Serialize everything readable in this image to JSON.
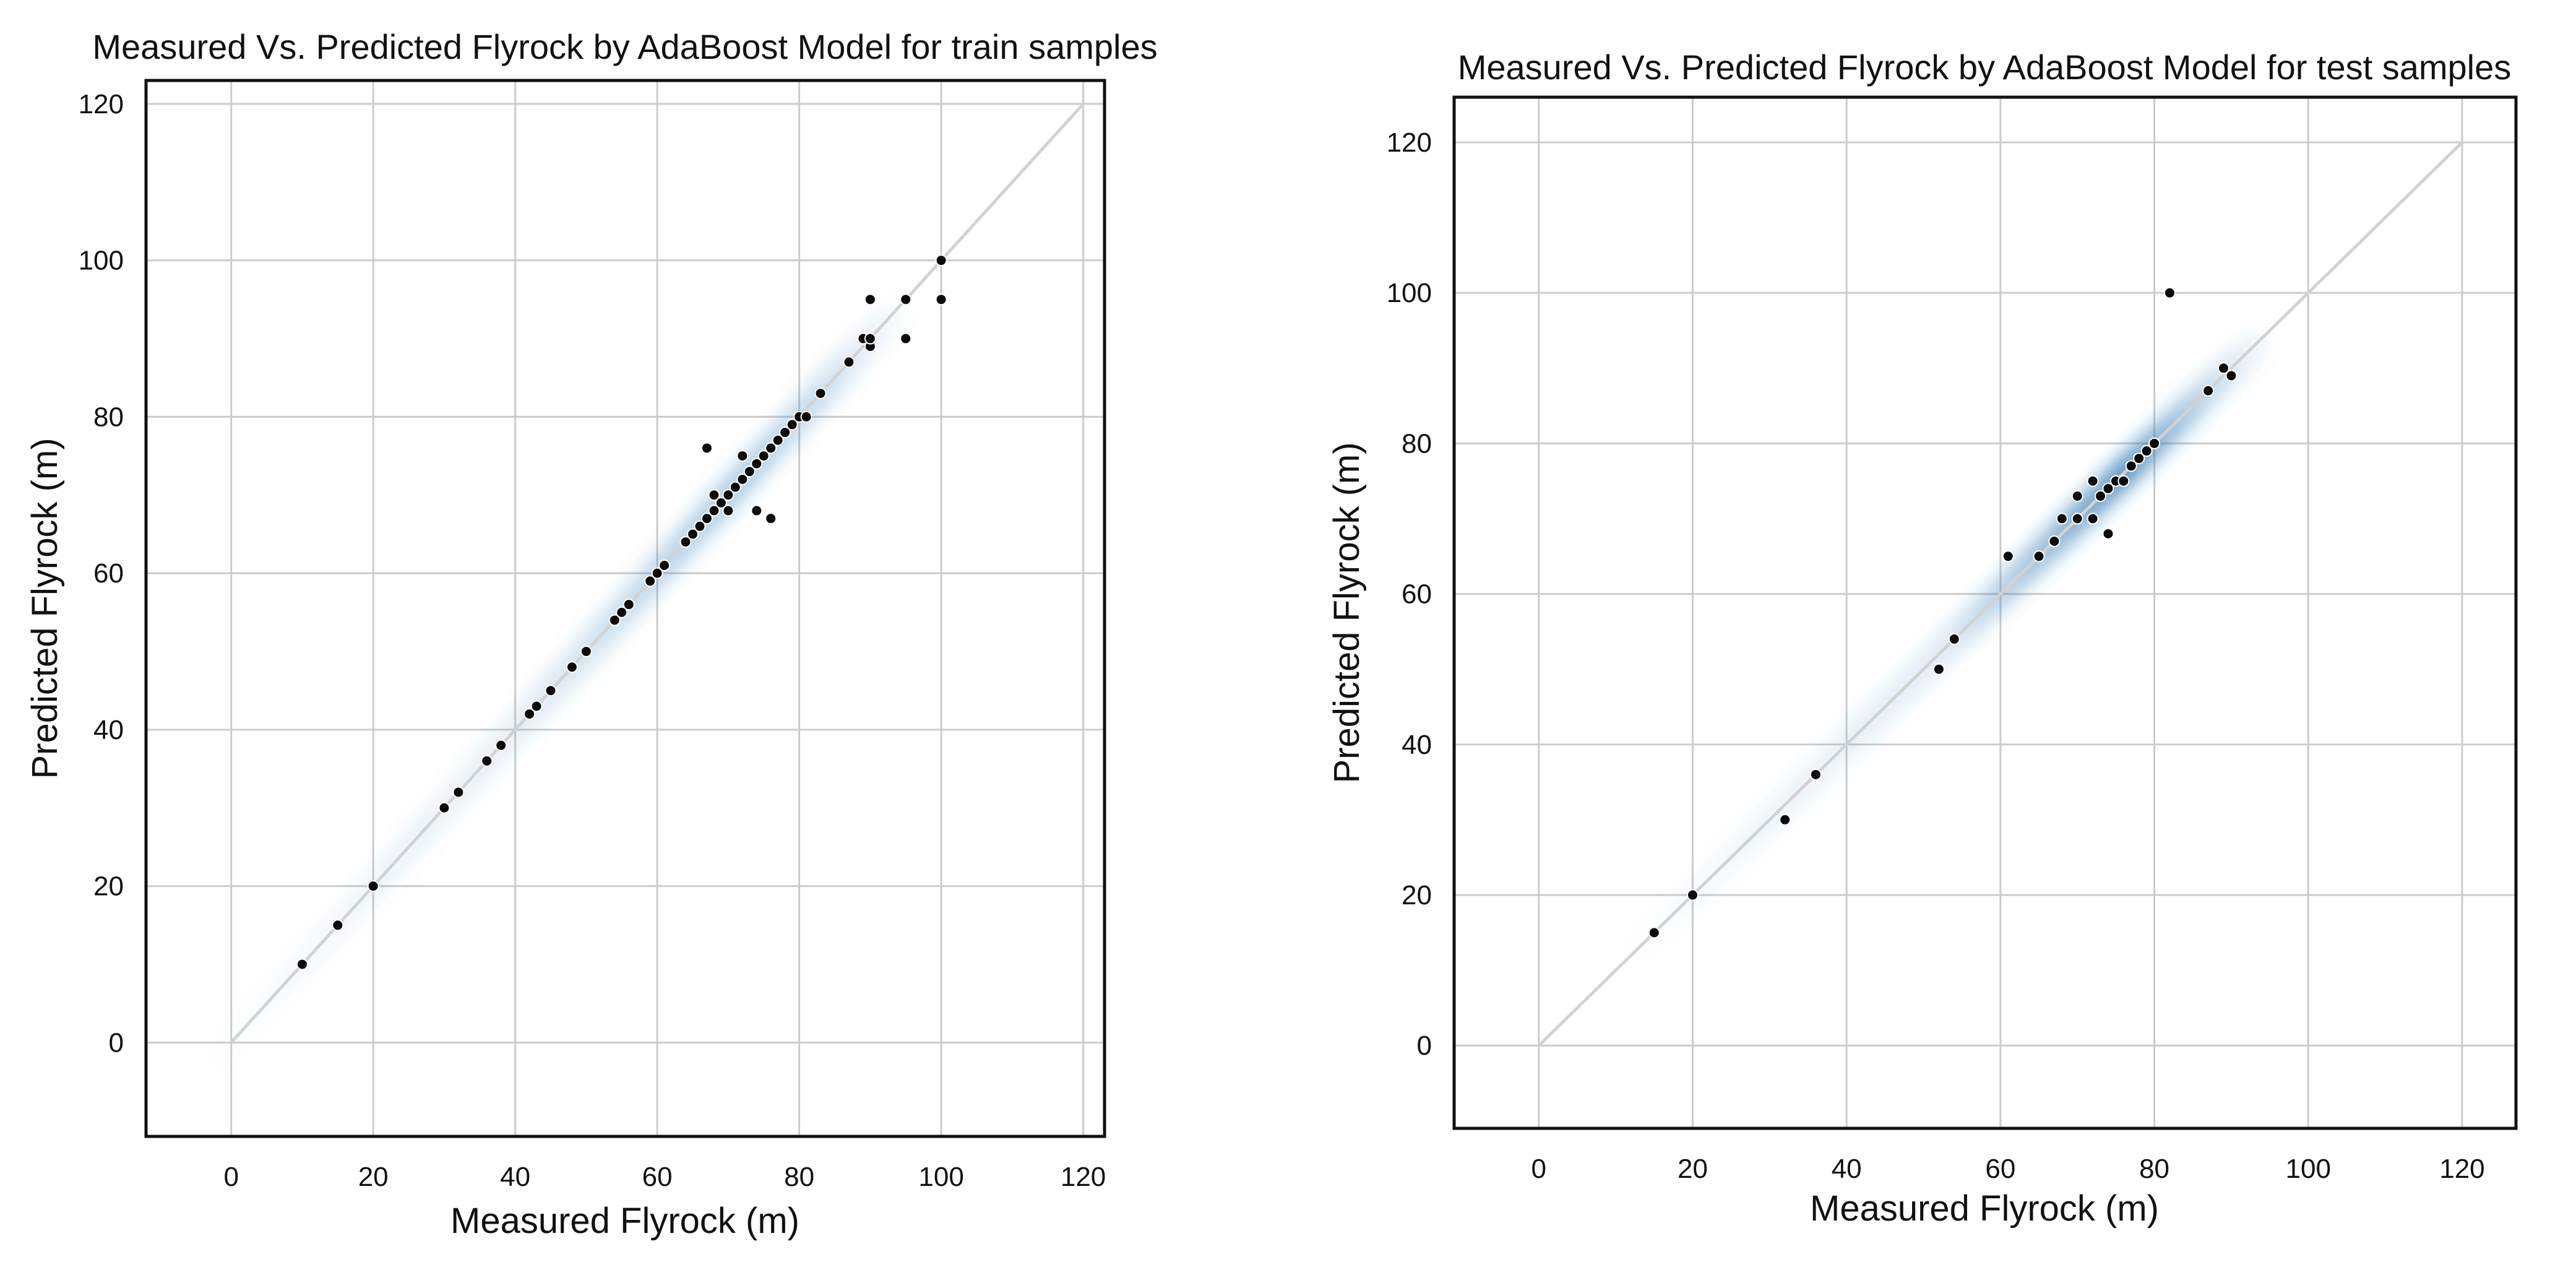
{
  "chart_data": [
    {
      "type": "scatter",
      "title": "Measured Vs. Predicted Flyrock by AdaBoost Model for train samples",
      "xlabel": "Measured Flyrock (m)",
      "ylabel": "Predicted Flyrock (m)",
      "xlim": [
        -12,
        123
      ],
      "ylim": [
        -12,
        123
      ],
      "xticks": [
        0,
        20,
        40,
        60,
        80,
        100,
        120
      ],
      "yticks": [
        0,
        20,
        40,
        60,
        80,
        100,
        120
      ],
      "grid": true,
      "reference_line": [
        [
          0,
          0
        ],
        [
          120,
          120
        ]
      ],
      "density_band": [
        [
          -5,
          -5
        ],
        [
          95,
          95
        ]
      ],
      "series": [
        {
          "name": "train samples",
          "points": [
            [
              10,
              10
            ],
            [
              15,
              15
            ],
            [
              20,
              20
            ],
            [
              30,
              30
            ],
            [
              32,
              32
            ],
            [
              36,
              36
            ],
            [
              38,
              38
            ],
            [
              42,
              42
            ],
            [
              43,
              43
            ],
            [
              45,
              45
            ],
            [
              48,
              48
            ],
            [
              50,
              50
            ],
            [
              54,
              54
            ],
            [
              55,
              55
            ],
            [
              56,
              56
            ],
            [
              59,
              59
            ],
            [
              60,
              60
            ],
            [
              61,
              61
            ],
            [
              64,
              64
            ],
            [
              65,
              65
            ],
            [
              66,
              66
            ],
            [
              67,
              67
            ],
            [
              67,
              76
            ],
            [
              68,
              68
            ],
            [
              68,
              70
            ],
            [
              69,
              69
            ],
            [
              70,
              68
            ],
            [
              70,
              70
            ],
            [
              71,
              71
            ],
            [
              72,
              72
            ],
            [
              72,
              75
            ],
            [
              73,
              73
            ],
            [
              74,
              68
            ],
            [
              74,
              74
            ],
            [
              75,
              75
            ],
            [
              76,
              67
            ],
            [
              76,
              76
            ],
            [
              77,
              77
            ],
            [
              78,
              78
            ],
            [
              79,
              79
            ],
            [
              80,
              80
            ],
            [
              81,
              80
            ],
            [
              83,
              83
            ],
            [
              87,
              87
            ],
            [
              89,
              90
            ],
            [
              90,
              89
            ],
            [
              90,
              90
            ],
            [
              90,
              95
            ],
            [
              95,
              90
            ],
            [
              95,
              95
            ],
            [
              100,
              95
            ],
            [
              100,
              100
            ]
          ]
        }
      ]
    },
    {
      "type": "scatter",
      "title": "Measured Vs. Predicted Flyrock by AdaBoost Model for test samples",
      "xlabel": "Measured Flyrock (m)",
      "ylabel": "Predicted Flyrock (m)",
      "xlim": [
        -11,
        127
      ],
      "ylim": [
        -11,
        126
      ],
      "xticks": [
        0,
        20,
        40,
        60,
        80,
        100,
        120
      ],
      "yticks": [
        0,
        20,
        40,
        60,
        80,
        100,
        120
      ],
      "grid": true,
      "reference_line": [
        [
          0,
          0
        ],
        [
          120,
          120
        ]
      ],
      "density_band": [
        [
          10,
          10
        ],
        [
          95,
          95
        ]
      ],
      "series": [
        {
          "name": "test samples",
          "points": [
            [
              15,
              15
            ],
            [
              20,
              20
            ],
            [
              32,
              30
            ],
            [
              36,
              36
            ],
            [
              52,
              50
            ],
            [
              54,
              54
            ],
            [
              61,
              65
            ],
            [
              65,
              65
            ],
            [
              67,
              67
            ],
            [
              68,
              70
            ],
            [
              70,
              70
            ],
            [
              70,
              73
            ],
            [
              72,
              70
            ],
            [
              72,
              75
            ],
            [
              73,
              73
            ],
            [
              74,
              68
            ],
            [
              74,
              74
            ],
            [
              75,
              75
            ],
            [
              76,
              75
            ],
            [
              77,
              77
            ],
            [
              78,
              78
            ],
            [
              79,
              79
            ],
            [
              80,
              80
            ],
            [
              82,
              100
            ],
            [
              87,
              87
            ],
            [
              89,
              90
            ],
            [
              90,
              89
            ]
          ]
        }
      ]
    }
  ]
}
